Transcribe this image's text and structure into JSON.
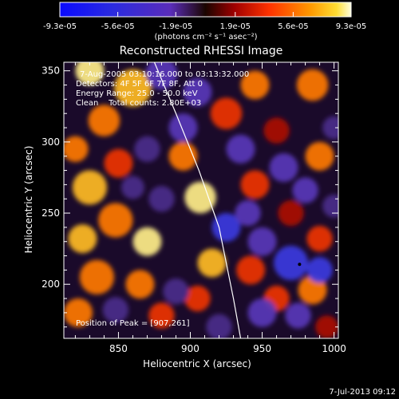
{
  "colorbar": {
    "tick_labels": [
      "-9.3e-05",
      "-5.6e-05",
      "-1.9e-05",
      "1.9e-05",
      "5.6e-05",
      "9.3e-05"
    ],
    "unit_label": "(photons cm⁻² s⁻¹ asec⁻²)",
    "range": [
      -9.3e-05,
      9.3e-05
    ]
  },
  "chart_data": {
    "type": "heatmap",
    "title": "Reconstructed RHESSI Image",
    "xlabel": "Heliocentric X (arcsec)",
    "ylabel": "Heliocentric Y (arcsec)",
    "xlim": [
      812,
      1003
    ],
    "ylim": [
      162,
      356
    ],
    "x_ticks": [
      "850",
      "900",
      "950",
      "1000"
    ],
    "y_ticks": [
      "200",
      "250",
      "300",
      "350"
    ],
    "annotations": [
      "7-Aug-2005 03:10:16.000 to 03:13:32.000",
      "Detectors: 4F 5F 6F 7F 8F, Att 0",
      "Energy Range: 25.0 - 50.0 keV",
      "Clean    Total counts: 2.80E+03"
    ],
    "peak_label": "Position of Peak = [907,261]",
    "peak": [
      907,
      261
    ],
    "limb_curve": [
      [
        875,
        356
      ],
      [
        890,
        320
      ],
      [
        906,
        280
      ],
      [
        920,
        240
      ],
      [
        930,
        190
      ],
      [
        935,
        162
      ]
    ],
    "emission_sources": [
      {
        "x": 830,
        "y": 350,
        "v": 0.9,
        "r": 10
      },
      {
        "x": 860,
        "y": 338,
        "v": 0.8,
        "r": 13
      },
      {
        "x": 840,
        "y": 315,
        "v": 0.7,
        "r": 11
      },
      {
        "x": 820,
        "y": 295,
        "v": 0.6,
        "r": 9
      },
      {
        "x": 850,
        "y": 285,
        "v": 0.55,
        "r": 10
      },
      {
        "x": 830,
        "y": 268,
        "v": 0.8,
        "r": 12
      },
      {
        "x": 848,
        "y": 245,
        "v": 0.7,
        "r": 12
      },
      {
        "x": 825,
        "y": 232,
        "v": 0.85,
        "r": 10
      },
      {
        "x": 870,
        "y": 230,
        "v": 0.95,
        "r": 10
      },
      {
        "x": 835,
        "y": 205,
        "v": 0.7,
        "r": 12
      },
      {
        "x": 865,
        "y": 200,
        "v": 0.7,
        "r": 10
      },
      {
        "x": 822,
        "y": 180,
        "v": 0.6,
        "r": 10
      },
      {
        "x": 880,
        "y": 178,
        "v": 0.5,
        "r": 9
      },
      {
        "x": 907,
        "y": 261,
        "v": 1.0,
        "r": 11
      },
      {
        "x": 895,
        "y": 290,
        "v": 0.65,
        "r": 10
      },
      {
        "x": 915,
        "y": 215,
        "v": 0.8,
        "r": 10
      },
      {
        "x": 905,
        "y": 190,
        "v": 0.55,
        "r": 9
      },
      {
        "x": 925,
        "y": 320,
        "v": 0.5,
        "r": 11
      },
      {
        "x": 945,
        "y": 340,
        "v": 0.65,
        "r": 10
      },
      {
        "x": 985,
        "y": 340,
        "v": 0.6,
        "r": 11
      },
      {
        "x": 960,
        "y": 308,
        "v": 0.35,
        "r": 9
      },
      {
        "x": 990,
        "y": 290,
        "v": 0.7,
        "r": 10
      },
      {
        "x": 945,
        "y": 270,
        "v": 0.5,
        "r": 10
      },
      {
        "x": 970,
        "y": 250,
        "v": 0.3,
        "r": 9
      },
      {
        "x": 990,
        "y": 232,
        "v": 0.5,
        "r": 9
      },
      {
        "x": 942,
        "y": 210,
        "v": 0.45,
        "r": 10
      },
      {
        "x": 960,
        "y": 190,
        "v": 0.55,
        "r": 9
      },
      {
        "x": 985,
        "y": 196,
        "v": 0.7,
        "r": 10
      },
      {
        "x": 995,
        "y": 170,
        "v": 0.35,
        "r": 8
      },
      {
        "x": 880,
        "y": 348,
        "v": -0.5,
        "r": 11
      },
      {
        "x": 905,
        "y": 335,
        "v": -0.6,
        "r": 10
      },
      {
        "x": 895,
        "y": 310,
        "v": -0.45,
        "r": 10
      },
      {
        "x": 870,
        "y": 295,
        "v": -0.4,
        "r": 9
      },
      {
        "x": 935,
        "y": 295,
        "v": -0.6,
        "r": 10
      },
      {
        "x": 965,
        "y": 282,
        "v": -0.5,
        "r": 10
      },
      {
        "x": 925,
        "y": 240,
        "v": -0.7,
        "r": 10
      },
      {
        "x": 950,
        "y": 230,
        "v": -0.6,
        "r": 10
      },
      {
        "x": 940,
        "y": 250,
        "v": -0.5,
        "r": 9
      },
      {
        "x": 980,
        "y": 266,
        "v": -0.55,
        "r": 9
      },
      {
        "x": 970,
        "y": 215,
        "v": -0.85,
        "r": 12
      },
      {
        "x": 990,
        "y": 210,
        "v": -0.7,
        "r": 9
      },
      {
        "x": 950,
        "y": 180,
        "v": -0.6,
        "r": 10
      },
      {
        "x": 975,
        "y": 178,
        "v": -0.5,
        "r": 9
      },
      {
        "x": 890,
        "y": 195,
        "v": -0.4,
        "r": 9
      },
      {
        "x": 880,
        "y": 260,
        "v": -0.4,
        "r": 9
      },
      {
        "x": 860,
        "y": 268,
        "v": -0.3,
        "r": 8
      },
      {
        "x": 848,
        "y": 182,
        "v": -0.35,
        "r": 9
      },
      {
        "x": 920,
        "y": 170,
        "v": -0.3,
        "r": 9
      },
      {
        "x": 1000,
        "y": 310,
        "v": -0.4,
        "r": 8
      },
      {
        "x": 1000,
        "y": 255,
        "v": -0.4,
        "r": 8
      }
    ]
  },
  "footer": {
    "timestamp": "7-Jul-2013 09:12"
  }
}
